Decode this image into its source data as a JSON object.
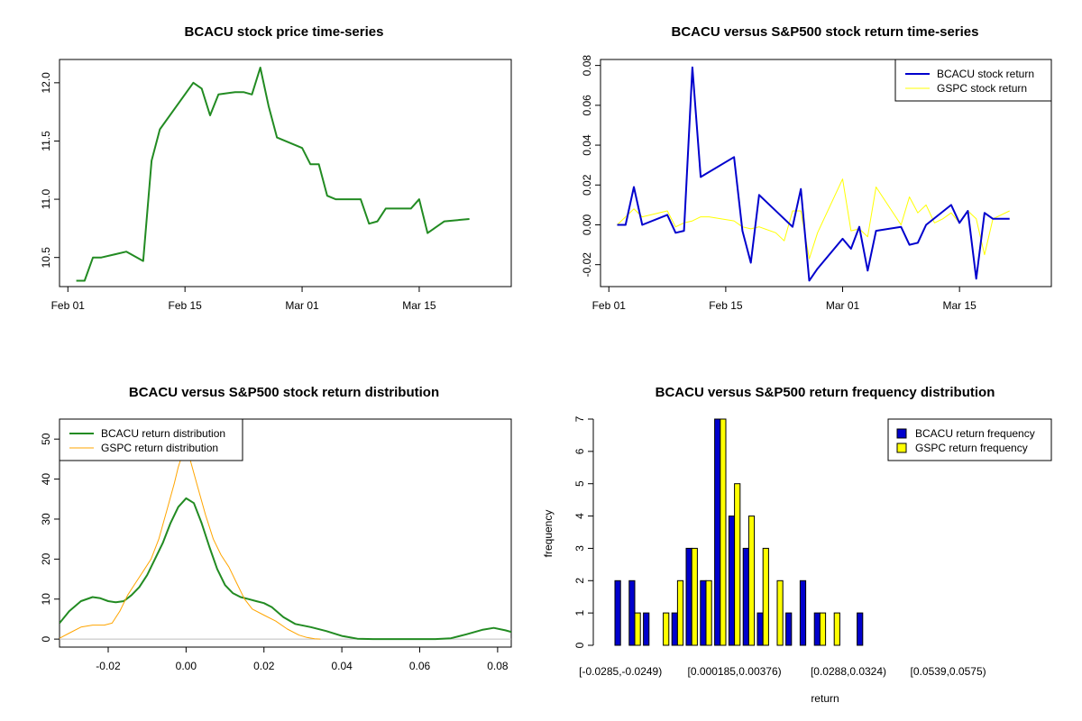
{
  "colors": {
    "green": "#228B22",
    "blue": "#0000CD",
    "yellow": "#FFFF00",
    "orange": "#FFA500",
    "gray": "#BEBEBE"
  },
  "chart_data": [
    {
      "type": "line",
      "title": "BCACU stock price time-series",
      "xlabel": "",
      "ylabel": "",
      "xlim": [
        0,
        54
      ],
      "ylim": [
        10.25,
        12.2
      ],
      "xticks": [
        {
          "v": 1,
          "label": "Feb 01"
        },
        {
          "v": 15,
          "label": "Feb 15"
        },
        {
          "v": 29,
          "label": "Mar 01"
        },
        {
          "v": 43,
          "label": "Mar 15"
        }
      ],
      "yticks": [
        {
          "v": 10.5,
          "label": "10.5"
        },
        {
          "v": 11.0,
          "label": "11.0"
        },
        {
          "v": 11.5,
          "label": "11.5"
        },
        {
          "v": 12.0,
          "label": "12.0"
        }
      ],
      "series": [
        {
          "name": "BCACU price",
          "color": "#228B22",
          "x": [
            2,
            3,
            4,
            5,
            8,
            10,
            11,
            12,
            16,
            17,
            18,
            19,
            21,
            22,
            23,
            24,
            25,
            26,
            29,
            30,
            31,
            32,
            33,
            36,
            37,
            38,
            39,
            42,
            43,
            44,
            45,
            46,
            49
          ],
          "y": [
            10.3,
            10.3,
            10.5,
            10.5,
            10.55,
            10.47,
            11.33,
            11.6,
            12.0,
            11.95,
            11.72,
            11.9,
            11.92,
            11.92,
            11.9,
            12.13,
            11.8,
            11.53,
            11.44,
            11.3,
            11.3,
            11.03,
            11.0,
            11.0,
            10.79,
            10.81,
            10.92,
            10.92,
            11.0,
            10.71,
            10.76,
            10.81,
            10.83
          ]
        }
      ]
    },
    {
      "type": "line",
      "title": "BCACU versus S&P500 stock return time-series",
      "xlabel": "",
      "ylabel": "",
      "xlim": [
        0,
        54
      ],
      "ylim": [
        -0.031,
        0.083
      ],
      "xticks": [
        {
          "v": 1,
          "label": "Feb 01"
        },
        {
          "v": 15,
          "label": "Feb 15"
        },
        {
          "v": 29,
          "label": "Mar 01"
        },
        {
          "v": 43,
          "label": "Mar 15"
        }
      ],
      "yticks": [
        {
          "v": -0.02,
          "label": "-0.02"
        },
        {
          "v": 0.0,
          "label": "0.00"
        },
        {
          "v": 0.02,
          "label": "0.02"
        },
        {
          "v": 0.04,
          "label": "0.04"
        },
        {
          "v": 0.06,
          "label": "0.06"
        },
        {
          "v": 0.08,
          "label": "0.08"
        }
      ],
      "legend": {
        "position": "top-right",
        "entries": [
          {
            "label": "BCACU stock return",
            "color": "#0000CD"
          },
          {
            "label": "GSPC stock return",
            "color": "#FFFF00"
          }
        ]
      },
      "series": [
        {
          "name": "BCACU stock return",
          "color": "#0000CD",
          "x": [
            2,
            3,
            4,
            5,
            8,
            9,
            10,
            11,
            12,
            16,
            17,
            18,
            19,
            23,
            24,
            25,
            26,
            29,
            30,
            31,
            32,
            33,
            36,
            37,
            38,
            39,
            42,
            43,
            44,
            45,
            46,
            47,
            49
          ],
          "y": [
            0.0,
            0.0,
            0.019,
            0.0,
            0.005,
            -0.004,
            -0.003,
            0.079,
            0.024,
            0.034,
            -0.003,
            -0.019,
            0.015,
            -0.001,
            0.018,
            -0.028,
            -0.022,
            -0.007,
            -0.012,
            -0.001,
            -0.023,
            -0.003,
            -0.001,
            -0.01,
            -0.009,
            0.0,
            0.01,
            0.001,
            0.007,
            -0.027,
            0.006,
            0.003,
            0.003
          ]
        },
        {
          "name": "GSPC stock return",
          "color": "#FFFF00",
          "x": [
            2,
            4,
            5,
            8,
            9,
            10,
            11,
            12,
            13,
            16,
            17,
            18,
            19,
            21,
            22,
            23,
            24,
            25,
            26,
            29,
            30,
            31,
            32,
            33,
            36,
            37,
            38,
            39,
            40,
            41,
            42,
            43,
            44,
            45,
            46,
            47,
            49
          ],
          "y": [
            0.0,
            0.008,
            0.004,
            0.007,
            -0.001,
            0.001,
            0.002,
            0.004,
            0.004,
            0.002,
            -0.001,
            -0.002,
            -0.001,
            -0.004,
            -0.008,
            0.007,
            0.007,
            -0.017,
            -0.004,
            0.023,
            -0.003,
            -0.002,
            -0.006,
            0.019,
            0.0,
            0.014,
            0.006,
            0.01,
            0.001,
            0.003,
            0.006,
            0.001,
            0.007,
            0.003,
            -0.015,
            0.003,
            0.007
          ]
        }
      ]
    },
    {
      "type": "line",
      "title": "BCACU versus S&P500 stock return distribution",
      "xlabel": "",
      "ylabel": "",
      "xlim": [
        -0.0325,
        0.0835
      ],
      "ylim": [
        -2,
        55
      ],
      "xticks": [
        {
          "v": -0.02,
          "label": "-0.02"
        },
        {
          "v": 0.0,
          "label": "0.00"
        },
        {
          "v": 0.02,
          "label": "0.02"
        },
        {
          "v": 0.04,
          "label": "0.04"
        },
        {
          "v": 0.06,
          "label": "0.06"
        },
        {
          "v": 0.08,
          "label": "0.08"
        }
      ],
      "yticks": [
        {
          "v": 0,
          "label": "0"
        },
        {
          "v": 10,
          "label": "10"
        },
        {
          "v": 20,
          "label": "20"
        },
        {
          "v": 30,
          "label": "30"
        },
        {
          "v": 40,
          "label": "40"
        },
        {
          "v": 50,
          "label": "50"
        }
      ],
      "legend": {
        "position": "top-left",
        "entries": [
          {
            "label": "BCACU return distribution",
            "color": "#228B22"
          },
          {
            "label": "GSPC return distribution",
            "color": "#FFA500"
          }
        ]
      },
      "series": [
        {
          "name": "BCACU return distribution",
          "color": "#228B22",
          "x": [
            -0.0325,
            -0.03,
            -0.027,
            -0.024,
            -0.022,
            -0.02,
            -0.018,
            -0.016,
            -0.014,
            -0.012,
            -0.01,
            -0.008,
            -0.006,
            -0.004,
            -0.002,
            0.0,
            0.002,
            0.004,
            0.006,
            0.008,
            0.01,
            0.012,
            0.014,
            0.016,
            0.018,
            0.02,
            0.022,
            0.025,
            0.028,
            0.032,
            0.036,
            0.04,
            0.044,
            0.048,
            0.052,
            0.056,
            0.06,
            0.064,
            0.068,
            0.072,
            0.076,
            0.079,
            0.082,
            0.0835
          ],
          "y": [
            4,
            7,
            9.5,
            10.5,
            10.2,
            9.5,
            9.2,
            9.5,
            11,
            13,
            16,
            20,
            24,
            29,
            33,
            35.2,
            34,
            29,
            23,
            17.5,
            13.5,
            11.5,
            10.5,
            10,
            9.5,
            9,
            8,
            5.5,
            3.8,
            3,
            2,
            0.8,
            0.1,
            0,
            0,
            0,
            0,
            0,
            0.2,
            1.2,
            2.3,
            2.8,
            2.2,
            1.8
          ]
        },
        {
          "name": "GSPC return distribution",
          "color": "#FFA500",
          "x": [
            -0.0325,
            -0.03,
            -0.027,
            -0.024,
            -0.021,
            -0.019,
            -0.017,
            -0.015,
            -0.013,
            -0.011,
            -0.009,
            -0.007,
            -0.005,
            -0.003,
            -0.002,
            -0.001,
            0.0,
            0.001,
            0.003,
            0.005,
            0.007,
            0.009,
            0.011,
            0.013,
            0.015,
            0.017,
            0.02,
            0.023,
            0.026,
            0.029,
            0.031,
            0.033,
            0.0345
          ],
          "y": [
            0.2,
            1.5,
            3,
            3.5,
            3.5,
            4,
            7,
            11,
            14,
            17,
            20,
            25,
            32,
            39,
            43,
            46,
            47,
            45,
            38,
            31,
            25,
            21,
            18,
            14,
            10,
            7.5,
            6,
            4.5,
            2.5,
            1,
            0.4,
            0.1,
            0
          ]
        }
      ],
      "baseline": {
        "y": 0,
        "color": "#BEBEBE"
      }
    },
    {
      "type": "bar",
      "title": "BCACU versus S&P500 return frequency distribution",
      "xlabel": "return",
      "ylabel": "frequency",
      "ylim": [
        0,
        7
      ],
      "yticks": [
        {
          "v": 0,
          "label": "0"
        },
        {
          "v": 1,
          "label": "1"
        },
        {
          "v": 2,
          "label": "2"
        },
        {
          "v": 3,
          "label": "3"
        },
        {
          "v": 4,
          "label": "4"
        },
        {
          "v": 5,
          "label": "5"
        },
        {
          "v": 6,
          "label": "6"
        },
        {
          "v": 7,
          "label": "7"
        }
      ],
      "category_labels": [
        {
          "index": 0,
          "label": "[-0.0285,-0.0249)"
        },
        {
          "index": 8,
          "label": "[0.000185,0.00376)"
        },
        {
          "index": 16,
          "label": "[0.0288,0.0324)"
        },
        {
          "index": 23,
          "label": "[0.0539,0.0575)"
        }
      ],
      "legend": {
        "position": "top-right",
        "entries": [
          {
            "label": "BCACU return frequency",
            "color": "#0000CD"
          },
          {
            "label": "GSPC return frequency",
            "color": "#FFFF00"
          }
        ]
      },
      "series": [
        {
          "name": "BCACU return frequency",
          "color": "#0000CD",
          "values": [
            2,
            2,
            1,
            0,
            1,
            3,
            2,
            7,
            4,
            3,
            1,
            0,
            1,
            2,
            1,
            0,
            0,
            1,
            0,
            0,
            0,
            0,
            0,
            0,
            0,
            0,
            0,
            0,
            0,
            0
          ]
        },
        {
          "name": "GSPC return frequency",
          "color": "#FFFF00",
          "values": [
            0,
            1,
            0,
            1,
            2,
            3,
            2,
            7,
            5,
            4,
            3,
            2,
            0,
            0,
            1,
            1,
            0,
            0,
            0,
            0,
            0,
            0,
            0,
            0,
            0,
            0,
            0,
            0,
            0,
            0
          ]
        }
      ]
    }
  ]
}
